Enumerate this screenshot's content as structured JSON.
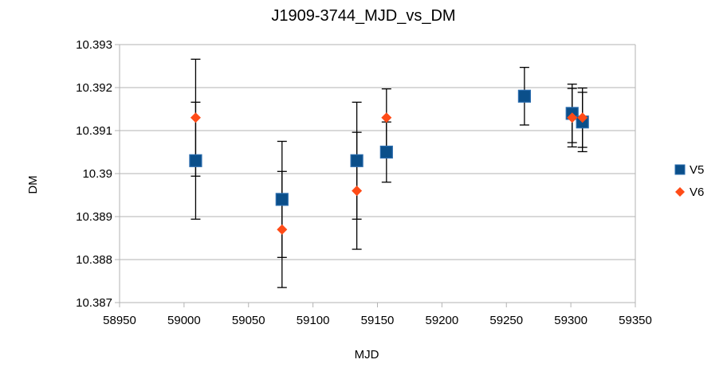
{
  "chart_data": {
    "type": "scatter",
    "title": "J1909-3744_MJD_vs_DM",
    "xlabel": "MJD",
    "ylabel": "DM",
    "xlim": [
      58950,
      59350
    ],
    "ylim": [
      10.387,
      10.393
    ],
    "xticks": [
      "58950",
      "59000",
      "59050",
      "59100",
      "59150",
      "59200",
      "59250",
      "59300",
      "59350"
    ],
    "yticks": [
      "10.387",
      "10.388",
      "10.389",
      "10.39",
      "10.391",
      "10.392",
      "10.393"
    ],
    "grid": "horizontal",
    "legend_position": "right",
    "series": [
      {
        "name": "V5",
        "marker": "square",
        "color": "#0b4f8a",
        "points": [
          {
            "x": 59009,
            "y": 10.3903,
            "err": 0.00136
          },
          {
            "x": 59076,
            "y": 10.3894,
            "err": 0.00135
          },
          {
            "x": 59134,
            "y": 10.3903,
            "err": 0.00136
          },
          {
            "x": 59157,
            "y": 10.3905,
            "err": 0.0007
          },
          {
            "x": 59264,
            "y": 10.3918,
            "err": 0.00067
          },
          {
            "x": 59301,
            "y": 10.3914,
            "err": 0.00068
          },
          {
            "x": 59309,
            "y": 10.3912,
            "err": 0.00069
          }
        ]
      },
      {
        "name": "V6",
        "marker": "diamond",
        "color": "#ff4b17",
        "points": [
          {
            "x": 59009,
            "y": 10.3913,
            "err": 0.00136
          },
          {
            "x": 59076,
            "y": 10.3887,
            "err": 0.00135
          },
          {
            "x": 59134,
            "y": 10.3896,
            "err": 0.00136
          },
          {
            "x": 59157,
            "y": 10.3913,
            "err": 0.00067
          },
          {
            "x": 59301,
            "y": 10.3913,
            "err": 0.00068
          },
          {
            "x": 59309,
            "y": 10.3913,
            "err": 0.00069
          }
        ]
      }
    ]
  }
}
